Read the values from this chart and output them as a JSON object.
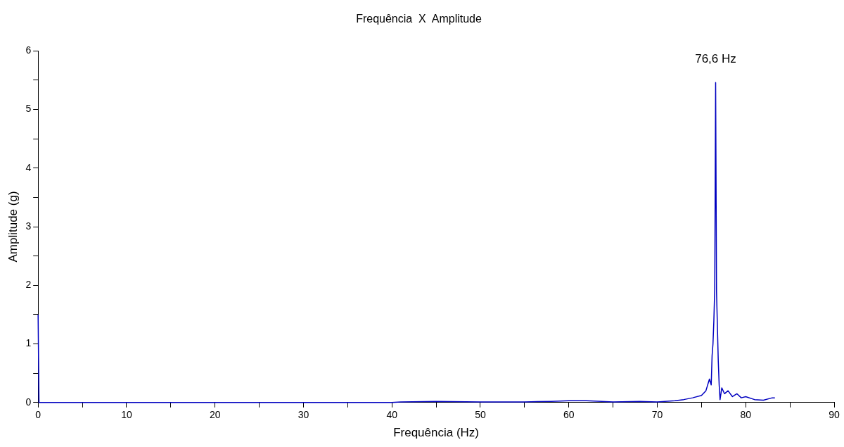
{
  "chart_data": {
    "type": "line",
    "title": "Frequência  X  Amplitude",
    "xlabel": "Frequência (Hz)",
    "ylabel": "Amplitude (g)",
    "xlim": [
      0,
      90
    ],
    "ylim": [
      0,
      6
    ],
    "xticks": [
      0,
      {
        "value": 5,
        "label": null
      },
      10,
      {
        "value": 15,
        "label": null
      },
      20,
      {
        "value": 25,
        "label": null
      },
      30,
      {
        "value": 35,
        "label": null
      },
      40,
      {
        "value": 45,
        "label": null
      },
      50,
      {
        "value": 55,
        "label": null
      },
      60,
      {
        "value": 65,
        "label": null
      },
      70,
      {
        "value": 75,
        "label": null
      },
      80,
      {
        "value": 85,
        "label": null
      },
      90
    ],
    "yticks": [
      0,
      {
        "value": 0.5,
        "label": null
      },
      1,
      {
        "value": 1.5,
        "label": null
      },
      2,
      {
        "value": 2.5,
        "label": null
      },
      3,
      {
        "value": 3.5,
        "label": null
      },
      4,
      {
        "value": 4.5,
        "label": null
      },
      5,
      {
        "value": 5.5,
        "label": null
      },
      6
    ],
    "grid": false,
    "legend": false,
    "marker": "none",
    "line_style": "solid",
    "annotations": [
      {
        "text": "76,6 Hz",
        "x": 76.6,
        "y": 5.46
      }
    ],
    "series": [
      {
        "color": "#0000c0",
        "x": [
          0,
          0.1,
          10,
          20,
          40,
          41,
          45,
          50,
          55,
          58,
          60,
          62,
          65,
          68,
          70,
          72,
          73,
          74,
          75,
          75.5,
          75.9,
          76.1,
          76.2,
          76.3,
          76.4,
          76.5,
          76.6,
          76.7,
          76.8,
          76.9,
          77.0,
          77.1,
          77.3,
          77.6,
          78,
          78.5,
          79,
          79.5,
          80,
          81,
          82,
          83,
          83.3
        ],
        "values": [
          1.5,
          0,
          0,
          0,
          0,
          0.01,
          0.02,
          0.01,
          0.01,
          0.02,
          0.03,
          0.03,
          0.01,
          0.02,
          0.01,
          0.03,
          0.05,
          0.08,
          0.12,
          0.2,
          0.4,
          0.3,
          0.8,
          1.0,
          1.4,
          1.95,
          5.46,
          1.9,
          1.3,
          0.7,
          0.3,
          0.05,
          0.25,
          0.15,
          0.2,
          0.1,
          0.15,
          0.08,
          0.1,
          0.05,
          0.04,
          0.08,
          0.08
        ]
      }
    ]
  }
}
